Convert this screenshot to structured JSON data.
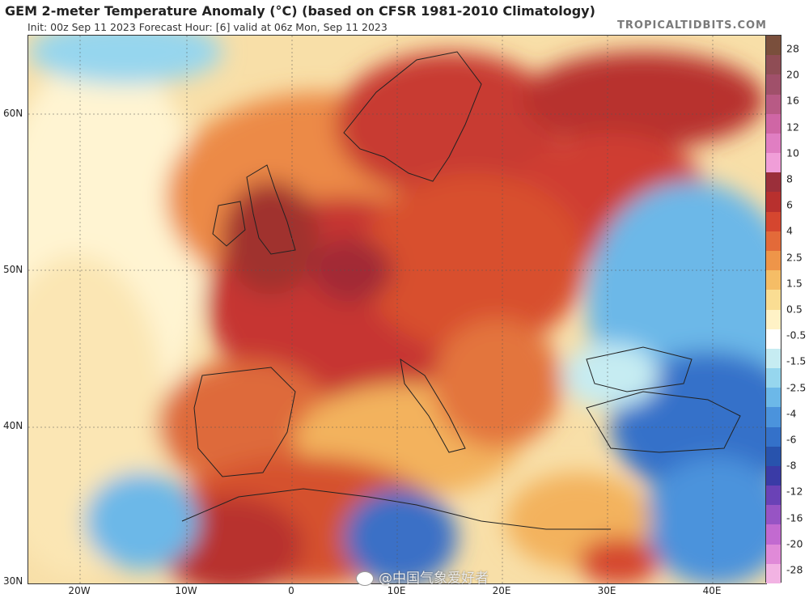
{
  "header": {
    "title": "GEM 2-meter Temperature Anomaly (°C) (based on CFSR 1981-2010 Climatology)",
    "subtitle": "Init: 00z Sep 11 2023   Forecast Hour: [6]   valid at 06z Mon, Sep 11 2023",
    "brand": "TROPICALTIDBITS.COM"
  },
  "map": {
    "lat_labels": [
      "60N",
      "50N",
      "40N",
      "30N"
    ],
    "lon_labels": [
      "20W",
      "10W",
      "0",
      "10E",
      "20E",
      "30E",
      "40E"
    ]
  },
  "colorbar": {
    "labels": [
      "28",
      "20",
      "16",
      "12",
      "10",
      "8",
      "6",
      "4",
      "2.5",
      "1.5",
      "0.5",
      "-0.5",
      "-1.5",
      "-2.5",
      "-4",
      "-6",
      "-8",
      "-12",
      "-16",
      "-20",
      "-28"
    ],
    "colors": [
      "#7a4f3c",
      "#8f4d55",
      "#a0506a",
      "#b85a85",
      "#cf66a5",
      "#e07ec2",
      "#f09ed8",
      "#9b2f3a",
      "#b8302e",
      "#d5462f",
      "#e36a39",
      "#ee9549",
      "#f5bd66",
      "#fadd93",
      "#fff2c6",
      "#ffffff",
      "#c6ecf2",
      "#96d6ee",
      "#6cb8e8",
      "#4b93dc",
      "#3471c9",
      "#2853ad",
      "#3a3ba6",
      "#6a42b6",
      "#9754c4",
      "#c26ad0",
      "#e08ad8",
      "#f2b3e3"
    ]
  },
  "watermark": {
    "text": "@中国气象爱好者"
  }
}
